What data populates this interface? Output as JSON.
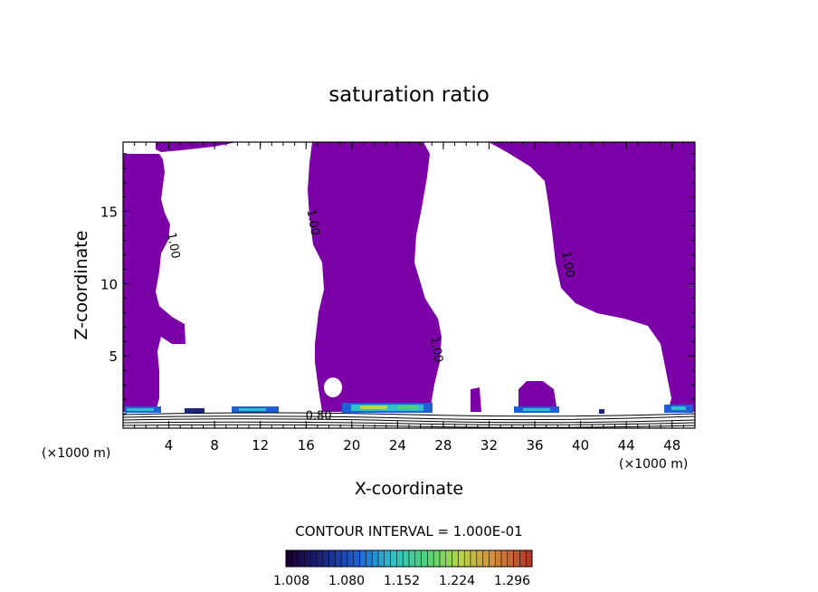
{
  "chart_data": {
    "type": "contour",
    "title": "saturation ratio",
    "xlabel": "X-coordinate",
    "ylabel": "Z-coordinate",
    "x_unit_left": "(×1000 m)",
    "x_unit_right": "(×1000 m)",
    "xlim": [
      0,
      50
    ],
    "ylim": [
      0,
      19.8
    ],
    "x_ticks": [
      {
        "v": 4,
        "label": "4"
      },
      {
        "v": 8,
        "label": "8"
      },
      {
        "v": 12,
        "label": "12"
      },
      {
        "v": 16,
        "label": "16"
      },
      {
        "v": 20,
        "label": "20"
      },
      {
        "v": 24,
        "label": "24"
      },
      {
        "v": 28,
        "label": "28"
      },
      {
        "v": 32,
        "label": "32"
      },
      {
        "v": 36,
        "label": "36"
      },
      {
        "v": 40,
        "label": "40"
      },
      {
        "v": 44,
        "label": "44"
      },
      {
        "v": 48,
        "label": "48"
      }
    ],
    "y_ticks": [
      {
        "v": 5,
        "label": "5"
      },
      {
        "v": 10,
        "label": "10"
      },
      {
        "v": 15,
        "label": "15"
      }
    ],
    "contour_interval_label": "CONTOUR INTERVAL = 1.000E-01",
    "contour_labels": [
      {
        "text": "1.00",
        "x": 4.1,
        "z": 12.6
      },
      {
        "text": "1.00",
        "x": 16.3,
        "z": 14.2
      },
      {
        "text": "1.00",
        "x": 27.1,
        "z": 5.4
      },
      {
        "text": "1.00",
        "x": 38.6,
        "z": 11.3
      },
      {
        "text": "0.80",
        "x": 17.1,
        "z": 0.6
      }
    ],
    "filled_regions": [
      {
        "name": "saturation >= 1.00",
        "color": "#7b00a8"
      }
    ],
    "colorbar": {
      "colors": [
        "#1b0033",
        "#1a2680",
        "#1f5fd6",
        "#2fc0c8",
        "#4fd27a",
        "#b8d64a",
        "#d68a3a",
        "#b23a2a"
      ],
      "tick_labels": [
        "1.008",
        "1.080",
        "1.152",
        "1.224",
        "1.296"
      ],
      "range": [
        1.008,
        1.296
      ]
    }
  }
}
